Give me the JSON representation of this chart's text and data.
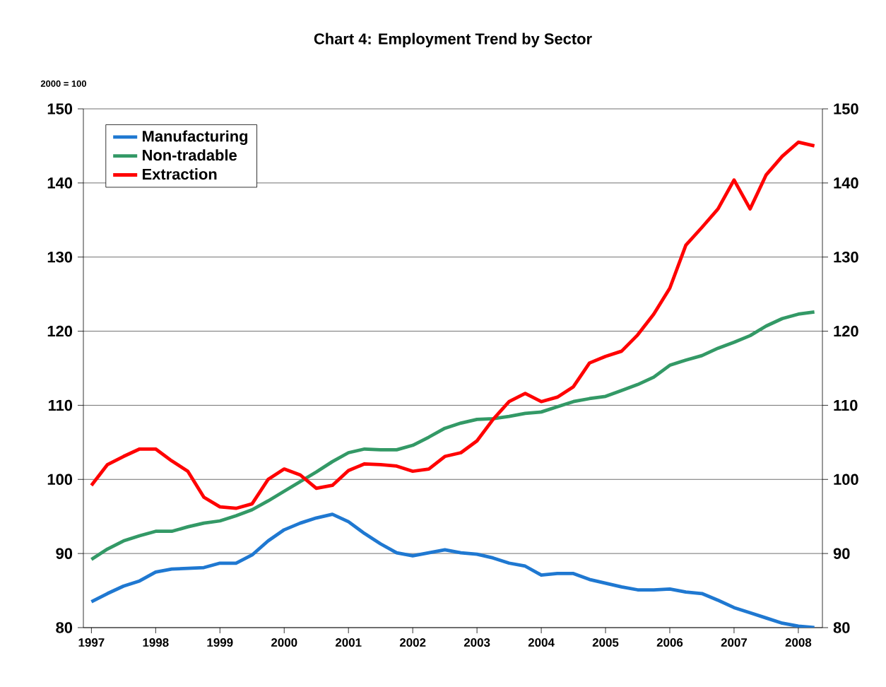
{
  "chart_data": {
    "type": "line",
    "title": "Chart 4: Employment Trend by Sector",
    "ylabel": "2000 = 100",
    "x": [
      1997,
      1997.25,
      1997.5,
      1997.75,
      1998,
      1998.25,
      1998.5,
      1998.75,
      1999,
      1999.25,
      1999.5,
      1999.75,
      2000,
      2000.25,
      2000.5,
      2000.75,
      2001,
      2001.25,
      2001.5,
      2001.75,
      2002,
      2002.25,
      2002.5,
      2002.75,
      2003,
      2003.25,
      2003.5,
      2003.75,
      2004,
      2004.25,
      2004.5,
      2004.75,
      2005,
      2005.25,
      2005.5,
      2005.75,
      2006,
      2006.25,
      2006.5,
      2006.75,
      2007,
      2007.25,
      2007.5,
      2007.75,
      2008,
      2008.25
    ],
    "series": [
      {
        "name": "Manufacturing",
        "color": "#1f78d1",
        "values": [
          83.5,
          84.6,
          85.6,
          86.3,
          87.5,
          87.9,
          88.0,
          88.1,
          88.7,
          88.7,
          89.8,
          91.7,
          93.2,
          94.1,
          94.8,
          95.3,
          94.3,
          92.7,
          91.3,
          90.1,
          89.7,
          90.1,
          90.5,
          90.1,
          89.9,
          89.4,
          88.7,
          88.3,
          87.1,
          87.3,
          87.3,
          86.5,
          86.0,
          85.5,
          85.1,
          85.1,
          85.2,
          84.8,
          84.6,
          83.7,
          82.7,
          82.0,
          81.3,
          80.6,
          80.2,
          80.0
        ]
      },
      {
        "name": "Non-tradable",
        "color": "#339966",
        "values": [
          89.2,
          90.6,
          91.7,
          92.4,
          93.0,
          93.0,
          93.6,
          94.1,
          94.4,
          95.1,
          95.9,
          97.1,
          98.4,
          99.7,
          101.0,
          102.4,
          103.6,
          104.1,
          104.0,
          104.0,
          104.6,
          105.7,
          106.9,
          107.6,
          108.1,
          108.2,
          108.5,
          108.9,
          109.1,
          109.8,
          110.5,
          110.9,
          111.2,
          112.0,
          112.8,
          113.8,
          115.4,
          116.1,
          116.7,
          117.7,
          118.5,
          119.4,
          120.7,
          121.7,
          122.3,
          122.6
        ]
      },
      {
        "name": "Extraction",
        "color": "#ff0000",
        "values": [
          99.2,
          102.0,
          103.1,
          104.1,
          104.1,
          102.5,
          101.1,
          97.6,
          96.3,
          96.1,
          96.7,
          100.0,
          101.4,
          100.6,
          98.8,
          99.2,
          101.2,
          102.1,
          102.0,
          101.8,
          101.1,
          101.4,
          103.1,
          103.6,
          105.2,
          108.1,
          110.5,
          111.6,
          110.5,
          111.1,
          112.5,
          115.7,
          116.6,
          117.3,
          119.5,
          122.3,
          125.8,
          131.6,
          134.0,
          136.5,
          140.4,
          136.5,
          141.1,
          143.6,
          145.5,
          145.0
        ]
      }
    ],
    "xlim": [
      1996.875,
      2008.375
    ],
    "xticks": [
      1997,
      1998,
      1999,
      2000,
      2001,
      2002,
      2003,
      2004,
      2005,
      2006,
      2007,
      2008
    ],
    "ylim": [
      80,
      150
    ],
    "yticks": [
      80,
      90,
      100,
      110,
      120,
      130,
      140,
      150
    ],
    "y2lim": [
      80,
      150
    ],
    "y2ticks": [
      80,
      90,
      100,
      110,
      120,
      130,
      140,
      150
    ],
    "grid": "y",
    "legend": "top left",
    "marker": "none",
    "line_style": "solid"
  }
}
